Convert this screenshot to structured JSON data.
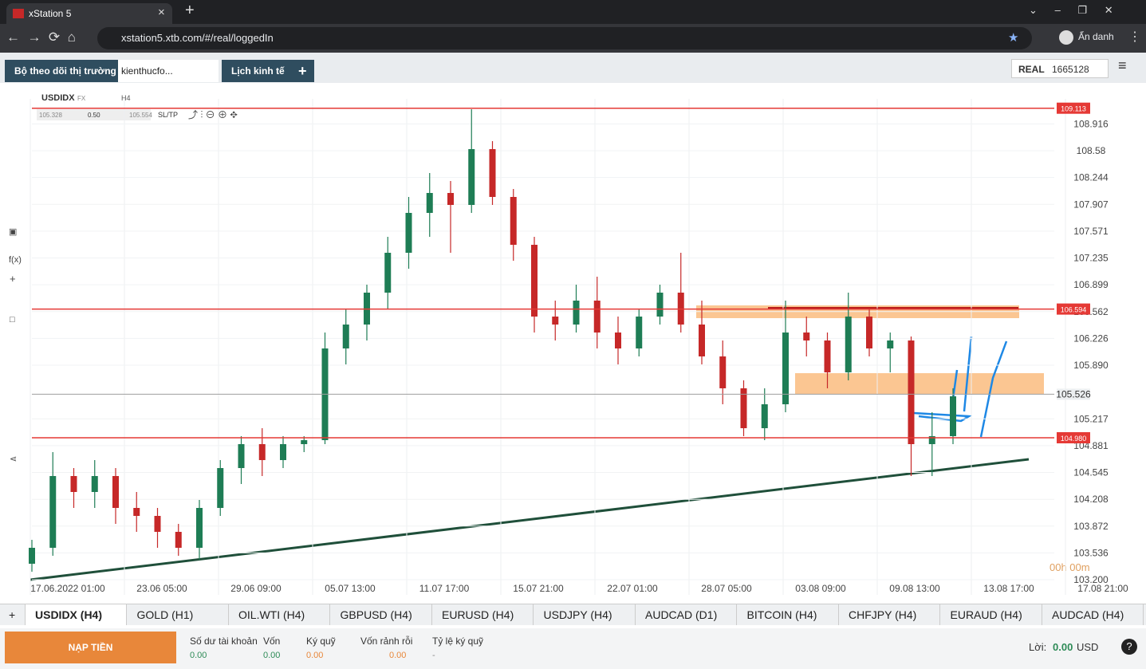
{
  "browser": {
    "tab_title": "xStation 5",
    "url": "xstation5.xtb.com/#/real/loggedIn",
    "profile": "Ẩn danh"
  },
  "toolbar": {
    "tabs": [
      "Bộ theo dõi thị trường",
      "kienthucfo...",
      "Lịch kinh tế"
    ],
    "account_type": "REAL",
    "account_id": "1665128"
  },
  "chart_data": {
    "type": "candlestick",
    "symbol": "USDIDX",
    "market": "FX",
    "timeframe": "H4",
    "trade_panel": {
      "bid": "105.328",
      "volume": "0.50",
      "ask": "105.554",
      "sltp": "SL/TP"
    },
    "ylim": [
      103.01,
      109.36
    ],
    "yticks": [
      108.916,
      108.58,
      108.244,
      107.907,
      107.571,
      107.235,
      106.899,
      106.562,
      106.226,
      {
        "value": 105.89,
        "label": "105.890"
      },
      105.217,
      104.881,
      104.545,
      104.208,
      103.872,
      103.536,
      {
        "value": 103.2,
        "label": "103.200"
      }
    ],
    "xlabels": [
      "17.06.2022 01:00",
      "23.06 05:00",
      "29.06 09:00",
      "05.07 13:00",
      "11.07 17:00",
      "15.07 21:00",
      "22.07 01:00",
      "28.07 05:00",
      "03.08 09:00",
      "09.08 13:00",
      "13.08 17:00",
      "17.08 21:00"
    ],
    "up_color": "#1e7d55",
    "down_color": "#c62828",
    "candles": [
      [
        103.4,
        103.7,
        103.3,
        103.6
      ],
      [
        103.6,
        104.8,
        103.5,
        104.5
      ],
      [
        104.5,
        104.6,
        104.1,
        104.3
      ],
      [
        104.3,
        104.7,
        104.1,
        104.5
      ],
      [
        104.5,
        104.6,
        103.9,
        104.1
      ],
      [
        104.1,
        104.3,
        103.8,
        104.0
      ],
      [
        104.0,
        104.1,
        103.6,
        103.8
      ],
      [
        103.8,
        103.9,
        103.5,
        103.6
      ],
      [
        103.6,
        104.2,
        103.45,
        104.1
      ],
      [
        104.1,
        104.7,
        104.0,
        104.6
      ],
      [
        104.6,
        105.0,
        104.4,
        104.9
      ],
      [
        104.9,
        105.1,
        104.5,
        104.7
      ],
      [
        104.7,
        105.0,
        104.6,
        104.9
      ],
      [
        104.9,
        105.0,
        104.8,
        104.95
      ],
      [
        104.95,
        106.3,
        104.9,
        106.1
      ],
      [
        106.1,
        106.6,
        105.9,
        106.4
      ],
      [
        106.4,
        106.9,
        106.2,
        106.8
      ],
      [
        106.8,
        107.5,
        106.6,
        107.3
      ],
      [
        107.3,
        108.0,
        107.1,
        107.8
      ],
      [
        107.8,
        108.3,
        107.5,
        108.05
      ],
      [
        108.05,
        108.2,
        107.3,
        107.9
      ],
      [
        107.9,
        109.1,
        107.8,
        108.6
      ],
      [
        108.6,
        108.7,
        107.9,
        108.0
      ],
      [
        108.0,
        108.1,
        107.2,
        107.4
      ],
      [
        107.4,
        107.5,
        106.3,
        106.5
      ],
      [
        106.5,
        106.7,
        106.2,
        106.4
      ],
      [
        106.4,
        106.9,
        106.3,
        106.7
      ],
      [
        106.7,
        107.0,
        106.1,
        106.3
      ],
      [
        106.3,
        106.5,
        105.9,
        106.1
      ],
      [
        106.1,
        106.6,
        106.0,
        106.5
      ],
      [
        106.5,
        106.9,
        106.4,
        106.8
      ],
      [
        106.8,
        107.3,
        106.3,
        106.4
      ],
      [
        106.4,
        106.7,
        105.9,
        106.0
      ],
      [
        106.0,
        106.2,
        105.4,
        105.6
      ],
      [
        105.6,
        105.7,
        105.0,
        105.1
      ],
      [
        105.1,
        105.6,
        104.95,
        105.4
      ],
      [
        105.4,
        106.7,
        105.3,
        106.3
      ],
      [
        106.3,
        106.5,
        106.0,
        106.2
      ],
      [
        106.2,
        106.3,
        105.6,
        105.8
      ],
      [
        105.8,
        106.8,
        105.7,
        106.5
      ],
      [
        106.5,
        106.6,
        106.0,
        106.1
      ],
      [
        106.1,
        106.3,
        105.8,
        106.2
      ],
      [
        106.2,
        106.25,
        104.5,
        104.9
      ],
      [
        104.9,
        105.3,
        104.5,
        105.0
      ],
      [
        105.0,
        105.6,
        104.9,
        105.5
      ]
    ],
    "price_lines": [
      {
        "value": 109.113,
        "color": "#e53935"
      },
      {
        "value": 106.594,
        "color": "#e53935"
      },
      {
        "value": 104.98,
        "label": "104.980",
        "color": "#e53935"
      },
      {
        "value": 105.526,
        "color": "#9e9e9e"
      }
    ],
    "timer": "00h 00m"
  },
  "instrument_tabs": [
    "USDIDX (H4)",
    "GOLD (H1)",
    "OIL.WTI (H4)",
    "GBPUSD (H4)",
    "EURUSD (H4)",
    "USDJPY (H4)",
    "AUDCAD (D1)",
    "BITCOIN (H4)",
    "CHFJPY (H4)",
    "EURAUD (H4)",
    "AUDCAD (H4)"
  ],
  "account_bar": {
    "deposit": "NẠP TIỀN",
    "fields": [
      {
        "label": "Số dư tài khoản",
        "value": "0.00"
      },
      {
        "label": "Vốn",
        "value": "0.00"
      },
      {
        "label": "Ký quỹ",
        "value": "0.00"
      },
      {
        "label": "Vốn rảnh rỗi",
        "value": "0.00"
      },
      {
        "label": "Tỷ lệ ký quỹ",
        "value": "-"
      }
    ],
    "profit_label": "Lời:",
    "profit_value": "0.00",
    "currency": "USD"
  }
}
